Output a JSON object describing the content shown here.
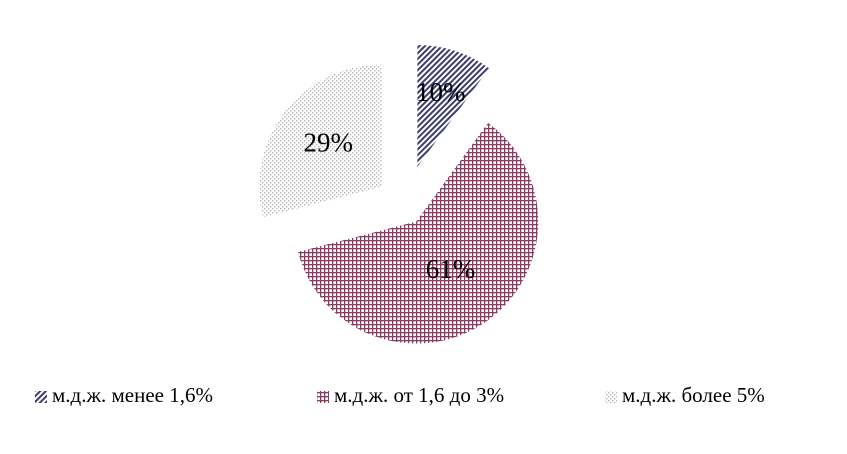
{
  "chart_data": {
    "type": "pie",
    "categories": [
      "м.д.ж. менее 1,6%",
      "м.д.ж. от 1,6 до 3%",
      "м.д.ж. более 5%"
    ],
    "values": [
      10,
      61,
      29
    ],
    "value_labels": [
      "10%",
      "61%",
      "29%"
    ],
    "colors": [
      "#3c3c6e",
      "#8c3a64",
      "#b4b4b4"
    ],
    "legend": "bottom"
  }
}
